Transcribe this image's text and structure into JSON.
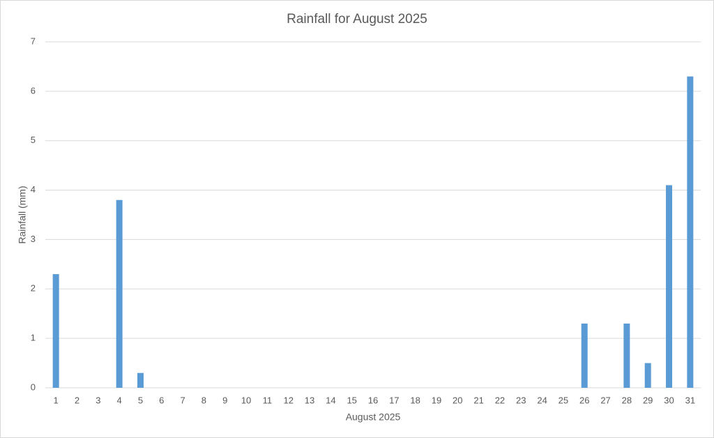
{
  "chart_data": {
    "type": "bar",
    "title": "Rainfall for August 2025",
    "x_label": "August 2025",
    "y_label": "Rainfall (mm)",
    "categories": [
      "1",
      "2",
      "3",
      "4",
      "5",
      "6",
      "7",
      "8",
      "9",
      "10",
      "11",
      "12",
      "13",
      "14",
      "15",
      "16",
      "17",
      "18",
      "19",
      "20",
      "21",
      "22",
      "23",
      "24",
      "25",
      "26",
      "27",
      "28",
      "29",
      "30",
      "31"
    ],
    "values": [
      2.3,
      0,
      0,
      3.8,
      0.3,
      0,
      0,
      0,
      0,
      0,
      0,
      0,
      0,
      0,
      0,
      0,
      0,
      0,
      0,
      0,
      0,
      0,
      0,
      0,
      0,
      1.3,
      0,
      1.3,
      0.5,
      4.1,
      6.3
    ],
    "color": "#5b9bd5",
    "ylim": [
      0,
      7
    ],
    "yticks": [
      0,
      1,
      2,
      3,
      4,
      5,
      6,
      7
    ],
    "grid": true
  }
}
